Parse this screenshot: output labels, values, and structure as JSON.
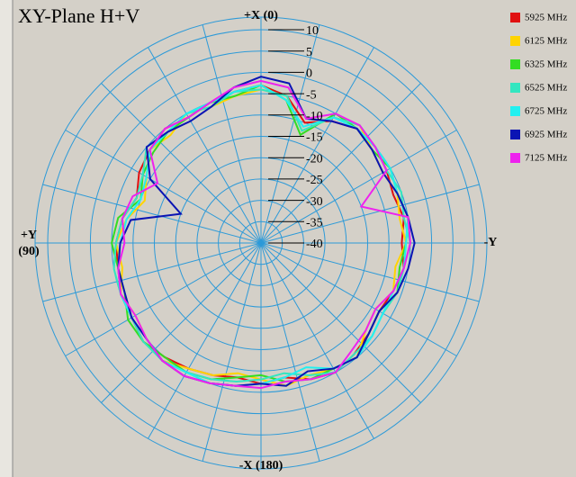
{
  "chart_data": {
    "type": "polar",
    "title": "XY-Plane  H+V",
    "angle_labels": {
      "top": "+X (0)",
      "left_1": "+Y",
      "left_2": "(90)",
      "right": "-Y",
      "bottom": "-X (180)"
    },
    "theta": [
      0,
      10,
      20,
      30,
      40,
      50,
      60,
      70,
      80,
      90,
      100,
      110,
      120,
      130,
      140,
      150,
      160,
      170,
      180,
      190,
      200,
      210,
      220,
      230,
      240,
      250,
      260,
      270,
      280,
      290,
      300,
      310,
      320,
      330,
      340,
      350
    ],
    "rlim": [
      -40,
      10
    ],
    "rticks": [
      10,
      5,
      0,
      -5,
      -10,
      -15,
      -20,
      -25,
      -30,
      -35,
      -40
    ],
    "grid": true,
    "series": [
      {
        "name": "5925 MHz",
        "color": "#e01010",
        "values": [
          -3,
          -4,
          -5,
          -6,
          -5,
          -6,
          -7,
          -9,
          -7,
          -6,
          -6,
          -5,
          -5,
          -4,
          -5,
          -6,
          -7,
          -8,
          -7,
          -8,
          -6,
          -5,
          -6,
          -7,
          -8,
          -7,
          -6,
          -7,
          -6,
          -7,
          -6,
          -5,
          -5,
          -7,
          -10,
          -5
        ]
      },
      {
        "name": "6125 MHz",
        "color": "#ffd400",
        "values": [
          -4,
          -5,
          -6,
          -5,
          -7,
          -6,
          -9,
          -11,
          -8,
          -6,
          -7,
          -5,
          -6,
          -5,
          -4,
          -6,
          -7,
          -9,
          -8,
          -6,
          -7,
          -6,
          -5,
          -8,
          -9,
          -7,
          -8,
          -6,
          -7,
          -6,
          -7,
          -6,
          -4,
          -6,
          -12,
          -5
        ]
      },
      {
        "name": "6325 MHz",
        "color": "#33dd22",
        "values": [
          -3,
          -5,
          -5,
          -6,
          -6,
          -7,
          -8,
          -10,
          -6,
          -5,
          -6,
          -6,
          -4,
          -4,
          -5,
          -5,
          -6,
          -8,
          -9,
          -7,
          -6,
          -6,
          -5,
          -7,
          -8,
          -6,
          -7,
          -6,
          -5,
          -6,
          -5,
          -6,
          -5,
          -5,
          -13,
          -6
        ]
      },
      {
        "name": "6525 MHz",
        "color": "#33e6c0",
        "values": [
          -4,
          -4,
          -6,
          -5,
          -6,
          -5,
          -8,
          -9,
          -7,
          -6,
          -5,
          -5,
          -5,
          -4,
          -4,
          -5,
          -6,
          -7,
          -8,
          -9,
          -7,
          -5,
          -6,
          -6,
          -7,
          -6,
          -6,
          -5,
          -6,
          -5,
          -6,
          -5,
          -4,
          -6,
          -12,
          -5
        ]
      },
      {
        "name": "6725 MHz",
        "color": "#22f0f0",
        "values": [
          -3,
          -4,
          -5,
          -5,
          -6,
          -6,
          -9,
          -10,
          -8,
          -7,
          -6,
          -5,
          -5,
          -5,
          -4,
          -5,
          -5,
          -6,
          -7,
          -8,
          -9,
          -6,
          -5,
          -6,
          -7,
          -7,
          -6,
          -6,
          -5,
          -6,
          -5,
          -5,
          -5,
          -6,
          -11,
          -6
        ]
      },
      {
        "name": "6925 MHz",
        "color": "#0a14b4",
        "values": [
          -1,
          -3,
          -6,
          -7,
          -6,
          -5,
          -10,
          -20,
          -9,
          -7,
          -6,
          -6,
          -5,
          -5,
          -4,
          -4,
          -5,
          -6,
          -7,
          -6,
          -8,
          -6,
          -5,
          -7,
          -8,
          -6,
          -5,
          -4,
          -5,
          -6,
          -7,
          -6,
          -5,
          -7,
          -9,
          -2
        ]
      },
      {
        "name": "7125 MHz",
        "color": "#ee22ee",
        "values": [
          -2,
          -3,
          -5,
          -6,
          -5,
          -6,
          -12,
          -8,
          -7,
          -8,
          -6,
          -5,
          -6,
          -5,
          -4,
          -4,
          -5,
          -6,
          -6,
          -7,
          -6,
          -5,
          -7,
          -8,
          -9,
          -7,
          -6,
          -5,
          -5,
          -15,
          -6,
          -5,
          -4,
          -5,
          -9,
          -3
        ]
      }
    ]
  }
}
